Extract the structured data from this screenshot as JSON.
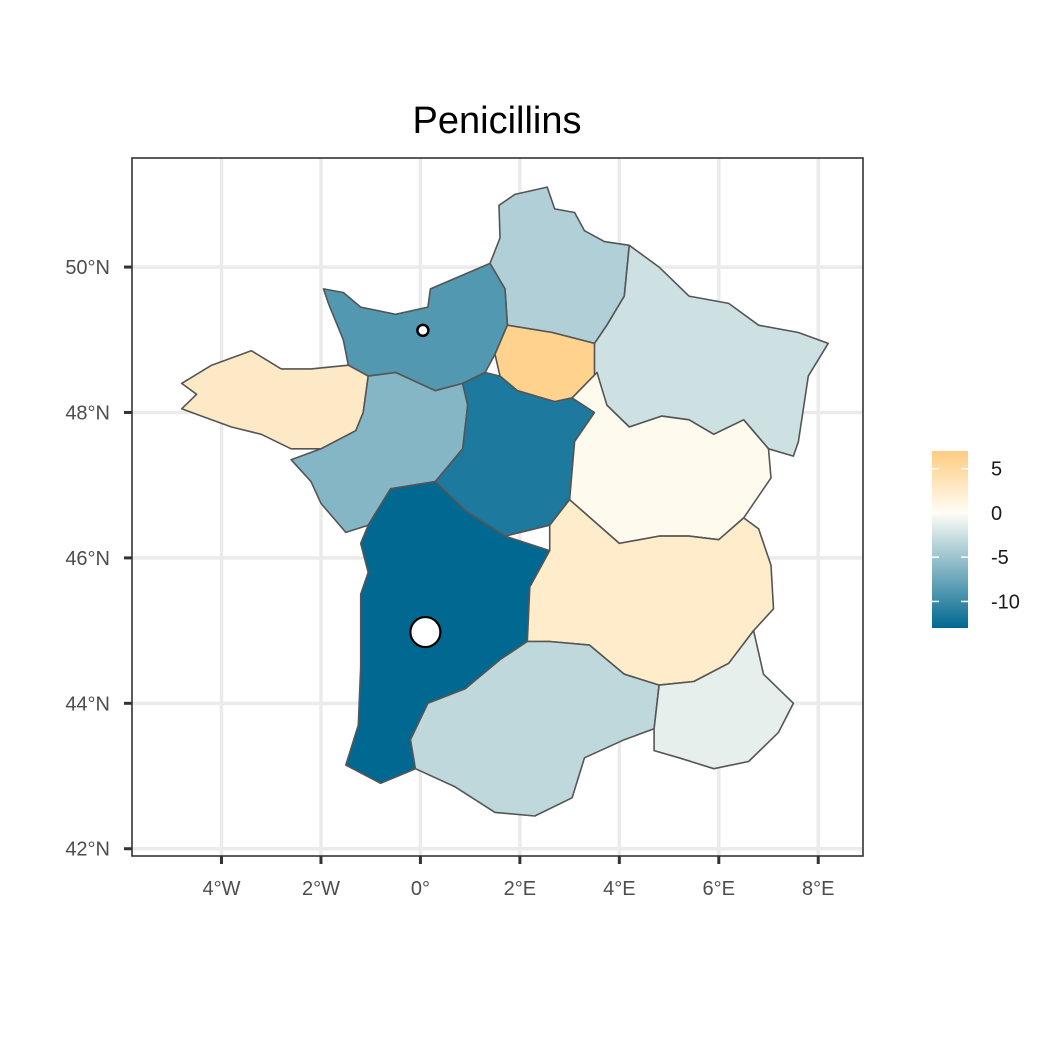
{
  "figure": {
    "title": "Penicillins"
  },
  "chart_data": {
    "type": "choropleth",
    "title": "Penicillins",
    "xlim": [
      -5.8,
      8.9
    ],
    "ylim": [
      41.9,
      51.5
    ],
    "x_ticks": [
      {
        "value": -4,
        "label": "4°W"
      },
      {
        "value": -2,
        "label": "2°W"
      },
      {
        "value": 0,
        "label": "0°"
      },
      {
        "value": 2,
        "label": "2°E"
      },
      {
        "value": 4,
        "label": "4°E"
      },
      {
        "value": 6,
        "label": "6°E"
      },
      {
        "value": 8,
        "label": "8°E"
      }
    ],
    "y_ticks": [
      {
        "value": 42,
        "label": "42°N"
      },
      {
        "value": 44,
        "label": "44°N"
      },
      {
        "value": 46,
        "label": "46°N"
      },
      {
        "value": 48,
        "label": "48°N"
      },
      {
        "value": 50,
        "label": "50°N"
      }
    ],
    "grid": true,
    "legend": {
      "position": "right",
      "ticks": [
        {
          "value": 5,
          "label": "5"
        },
        {
          "value": 0,
          "label": "0"
        },
        {
          "value": -5,
          "label": "-5"
        },
        {
          "value": -10,
          "label": "-10"
        }
      ],
      "range": [
        -13,
        7
      ],
      "colors": {
        "low": "#006891",
        "mid": "#fefdf5",
        "high": "#ffcc80"
      }
    },
    "regions": [
      {
        "id": "hauts-de-france",
        "value": -4,
        "boundary": [
          [
            1.4,
            50.05
          ],
          [
            1.6,
            50.4
          ],
          [
            1.58,
            50.85
          ],
          [
            1.9,
            51.0
          ],
          [
            2.55,
            51.1
          ],
          [
            2.7,
            50.8
          ],
          [
            3.1,
            50.75
          ],
          [
            3.3,
            50.5
          ],
          [
            3.7,
            50.35
          ],
          [
            4.2,
            50.3
          ],
          [
            4.15,
            49.95
          ],
          [
            4.1,
            49.6
          ],
          [
            3.75,
            49.2
          ],
          [
            3.5,
            48.95
          ],
          [
            2.65,
            49.1
          ],
          [
            1.75,
            49.2
          ],
          [
            1.7,
            49.7
          ]
        ]
      },
      {
        "id": "normandie",
        "value": -8.8,
        "boundary": [
          [
            -1.95,
            49.7
          ],
          [
            -1.55,
            49.65
          ],
          [
            -1.2,
            49.45
          ],
          [
            -0.5,
            49.35
          ],
          [
            0.15,
            49.45
          ],
          [
            0.2,
            49.7
          ],
          [
            1.4,
            50.05
          ],
          [
            1.7,
            49.7
          ],
          [
            1.75,
            49.2
          ],
          [
            1.5,
            48.8
          ],
          [
            1.3,
            48.55
          ],
          [
            0.85,
            48.4
          ],
          [
            0.3,
            48.3
          ],
          [
            -0.5,
            48.55
          ],
          [
            -1.05,
            48.5
          ],
          [
            -1.45,
            48.65
          ],
          [
            -1.55,
            49.0
          ],
          [
            -1.85,
            49.5
          ]
        ]
      },
      {
        "id": "ile-de-france",
        "value": 6.2,
        "boundary": [
          [
            1.5,
            48.8
          ],
          [
            1.75,
            49.2
          ],
          [
            2.65,
            49.1
          ],
          [
            3.5,
            48.95
          ],
          [
            3.55,
            48.55
          ],
          [
            3.05,
            48.2
          ],
          [
            2.7,
            48.15
          ],
          [
            1.95,
            48.3
          ],
          [
            1.6,
            48.5
          ]
        ]
      },
      {
        "id": "grand-est",
        "value": -2.5,
        "boundary": [
          [
            4.2,
            50.3
          ],
          [
            4.8,
            50.0
          ],
          [
            5.4,
            49.6
          ],
          [
            6.2,
            49.5
          ],
          [
            6.8,
            49.2
          ],
          [
            7.6,
            49.1
          ],
          [
            8.2,
            48.95
          ],
          [
            7.8,
            48.5
          ],
          [
            7.6,
            47.6
          ],
          [
            7.5,
            47.4
          ],
          [
            7.0,
            47.5
          ],
          [
            6.5,
            47.9
          ],
          [
            5.9,
            47.7
          ],
          [
            5.4,
            47.9
          ],
          [
            4.85,
            47.95
          ],
          [
            4.2,
            47.8
          ],
          [
            3.75,
            48.1
          ],
          [
            3.5,
            48.45
          ],
          [
            3.5,
            48.95
          ],
          [
            3.75,
            49.2
          ],
          [
            4.1,
            49.6
          ],
          [
            4.15,
            49.95
          ]
        ]
      },
      {
        "id": "bretagne",
        "value": 2.8,
        "boundary": [
          [
            -4.8,
            48.4
          ],
          [
            -4.2,
            48.65
          ],
          [
            -3.4,
            48.85
          ],
          [
            -2.8,
            48.6
          ],
          [
            -2.2,
            48.6
          ],
          [
            -1.45,
            48.65
          ],
          [
            -1.05,
            48.5
          ],
          [
            -1.15,
            48.0
          ],
          [
            -1.3,
            47.75
          ],
          [
            -2.0,
            47.5
          ],
          [
            -2.6,
            47.5
          ],
          [
            -3.2,
            47.7
          ],
          [
            -3.8,
            47.8
          ],
          [
            -4.4,
            47.95
          ],
          [
            -4.8,
            48.05
          ],
          [
            -4.5,
            48.25
          ]
        ]
      },
      {
        "id": "pays-de-la-loire",
        "value": -6.2,
        "boundary": [
          [
            -1.05,
            48.5
          ],
          [
            -0.5,
            48.55
          ],
          [
            0.3,
            48.3
          ],
          [
            0.85,
            48.4
          ],
          [
            0.95,
            48.1
          ],
          [
            0.85,
            47.5
          ],
          [
            0.3,
            47.05
          ],
          [
            -0.6,
            46.95
          ],
          [
            -1.05,
            46.45
          ],
          [
            -1.5,
            46.35
          ],
          [
            -2.0,
            46.75
          ],
          [
            -2.2,
            47.05
          ],
          [
            -2.6,
            47.35
          ],
          [
            -2.0,
            47.5
          ],
          [
            -1.3,
            47.75
          ],
          [
            -1.15,
            48.0
          ]
        ]
      },
      {
        "id": "centre-val-de-loire",
        "value": -11.5,
        "boundary": [
          [
            0.85,
            48.4
          ],
          [
            1.3,
            48.55
          ],
          [
            1.6,
            48.5
          ],
          [
            1.95,
            48.3
          ],
          [
            2.7,
            48.15
          ],
          [
            3.05,
            48.2
          ],
          [
            3.5,
            48.0
          ],
          [
            3.1,
            47.6
          ],
          [
            3.0,
            46.8
          ],
          [
            2.6,
            46.45
          ],
          [
            1.7,
            46.3
          ],
          [
            0.9,
            46.65
          ],
          [
            0.3,
            47.05
          ],
          [
            0.85,
            47.5
          ],
          [
            0.95,
            48.1
          ]
        ]
      },
      {
        "id": "bourgogne-franche-comte",
        "value": 0.5,
        "boundary": [
          [
            3.05,
            48.2
          ],
          [
            3.55,
            48.55
          ],
          [
            3.75,
            48.1
          ],
          [
            4.2,
            47.8
          ],
          [
            4.85,
            47.95
          ],
          [
            5.4,
            47.9
          ],
          [
            5.9,
            47.7
          ],
          [
            6.5,
            47.9
          ],
          [
            7.0,
            47.5
          ],
          [
            7.05,
            47.1
          ],
          [
            6.5,
            46.55
          ],
          [
            6.0,
            46.25
          ],
          [
            5.4,
            46.3
          ],
          [
            4.8,
            46.3
          ],
          [
            4.0,
            46.2
          ],
          [
            3.0,
            46.8
          ],
          [
            3.1,
            47.6
          ],
          [
            3.5,
            48.0
          ]
        ]
      },
      {
        "id": "nouvelle-aquitaine",
        "value": -13,
        "boundary": [
          [
            -1.05,
            46.45
          ],
          [
            -0.6,
            46.95
          ],
          [
            0.3,
            47.05
          ],
          [
            0.9,
            46.65
          ],
          [
            1.7,
            46.3
          ],
          [
            2.6,
            46.1
          ],
          [
            2.2,
            45.6
          ],
          [
            2.15,
            44.85
          ],
          [
            1.6,
            44.6
          ],
          [
            0.9,
            44.2
          ],
          [
            0.15,
            44.0
          ],
          [
            -0.2,
            43.5
          ],
          [
            -0.1,
            43.1
          ],
          [
            -0.8,
            42.9
          ],
          [
            -1.5,
            43.15
          ],
          [
            -1.25,
            43.7
          ],
          [
            -1.2,
            44.5
          ],
          [
            -1.2,
            45.5
          ],
          [
            -1.05,
            45.8
          ],
          [
            -1.2,
            46.2
          ]
        ]
      },
      {
        "id": "auvergne-rhone-alpes",
        "value": 2.5,
        "boundary": [
          [
            2.6,
            46.45
          ],
          [
            3.0,
            46.8
          ],
          [
            4.0,
            46.2
          ],
          [
            4.8,
            46.3
          ],
          [
            5.4,
            46.3
          ],
          [
            6.0,
            46.25
          ],
          [
            6.5,
            46.55
          ],
          [
            6.8,
            46.4
          ],
          [
            7.05,
            45.9
          ],
          [
            7.1,
            45.3
          ],
          [
            6.7,
            45.0
          ],
          [
            6.2,
            44.55
          ],
          [
            5.5,
            44.3
          ],
          [
            4.8,
            44.25
          ],
          [
            4.1,
            44.4
          ],
          [
            3.4,
            44.8
          ],
          [
            2.6,
            44.85
          ],
          [
            2.15,
            44.85
          ],
          [
            2.2,
            45.6
          ],
          [
            2.6,
            46.1
          ]
        ]
      },
      {
        "id": "occitanie",
        "value": -3.2,
        "boundary": [
          [
            -0.1,
            43.1
          ],
          [
            -0.2,
            43.5
          ],
          [
            0.15,
            44.0
          ],
          [
            0.9,
            44.2
          ],
          [
            1.6,
            44.6
          ],
          [
            2.15,
            44.85
          ],
          [
            2.6,
            44.85
          ],
          [
            3.4,
            44.8
          ],
          [
            4.1,
            44.4
          ],
          [
            4.8,
            44.25
          ],
          [
            4.7,
            43.65
          ],
          [
            4.1,
            43.5
          ],
          [
            3.3,
            43.25
          ],
          [
            3.05,
            42.7
          ],
          [
            2.3,
            42.45
          ],
          [
            1.5,
            42.5
          ],
          [
            0.7,
            42.85
          ]
        ]
      },
      {
        "id": "provence-alpes-cote-dazur",
        "value": -1.2,
        "boundary": [
          [
            4.8,
            44.25
          ],
          [
            5.5,
            44.3
          ],
          [
            6.2,
            44.55
          ],
          [
            6.7,
            45.0
          ],
          [
            6.9,
            44.4
          ],
          [
            7.5,
            44.0
          ],
          [
            7.2,
            43.6
          ],
          [
            6.6,
            43.2
          ],
          [
            5.9,
            43.1
          ],
          [
            5.2,
            43.25
          ],
          [
            4.7,
            43.35
          ],
          [
            4.7,
            43.65
          ]
        ]
      }
    ],
    "points": [
      {
        "lon": 0.1,
        "lat": 44.98,
        "size": "large"
      },
      {
        "lon": 0.05,
        "lat": 49.13,
        "size": "small"
      }
    ]
  }
}
